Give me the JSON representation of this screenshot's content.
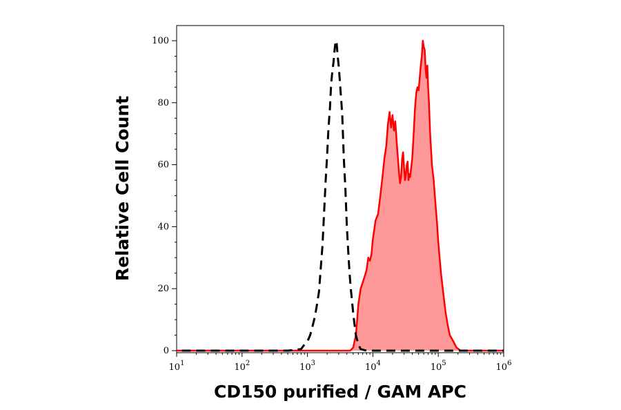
{
  "chart_data": {
    "type": "area",
    "xlabel": "CD150 purified / GAM APC",
    "ylabel": "Relative Cell Count",
    "x_scale": "log",
    "xlim": [
      10,
      1000000
    ],
    "ylim": [
      0,
      105
    ],
    "x_ticks": [
      {
        "base": "10",
        "exp": "1"
      },
      {
        "base": "10",
        "exp": "2"
      },
      {
        "base": "10",
        "exp": "3"
      },
      {
        "base": "10",
        "exp": "4"
      },
      {
        "base": "10",
        "exp": "5"
      },
      {
        "base": "10",
        "exp": "6"
      }
    ],
    "y_ticks": [
      "0",
      "20",
      "40",
      "60",
      "80",
      "100"
    ],
    "grid": false,
    "legend": "none",
    "series": [
      {
        "style": "dashed-line",
        "color": "#000000",
        "points": [
          [
            12,
            0
          ],
          [
            100,
            0
          ],
          [
            500,
            0
          ],
          [
            800,
            0.5
          ],
          [
            900,
            2
          ],
          [
            1000,
            3
          ],
          [
            1100,
            5
          ],
          [
            1200,
            8
          ],
          [
            1300,
            11
          ],
          [
            1400,
            15
          ],
          [
            1500,
            19
          ],
          [
            1600,
            27
          ],
          [
            1700,
            34
          ],
          [
            1800,
            45
          ],
          [
            1900,
            55
          ],
          [
            2000,
            63
          ],
          [
            2100,
            72
          ],
          [
            2200,
            78
          ],
          [
            2300,
            86
          ],
          [
            2400,
            90
          ],
          [
            2500,
            93
          ],
          [
            2600,
            97
          ],
          [
            2700,
            100
          ],
          [
            2800,
            99
          ],
          [
            2900,
            95
          ],
          [
            3000,
            92
          ],
          [
            3100,
            88
          ],
          [
            3200,
            84
          ],
          [
            3300,
            80
          ],
          [
            3400,
            76
          ],
          [
            3600,
            62
          ],
          [
            3800,
            52
          ],
          [
            4000,
            40
          ],
          [
            4200,
            32
          ],
          [
            4400,
            25
          ],
          [
            4600,
            20
          ],
          [
            4800,
            16
          ],
          [
            5000,
            12
          ],
          [
            5200,
            9
          ],
          [
            5500,
            5
          ],
          [
            6000,
            2
          ],
          [
            6500,
            0.5
          ],
          [
            8000,
            0
          ],
          [
            30000,
            0
          ],
          [
            70000,
            0
          ],
          [
            100000,
            0
          ],
          [
            1000000,
            0
          ]
        ]
      },
      {
        "style": "filled-area",
        "color": "#ff0000",
        "fill": "#ff9999",
        "points": [
          [
            10,
            0
          ],
          [
            4500,
            0
          ],
          [
            5000,
            1
          ],
          [
            5500,
            5
          ],
          [
            6000,
            15
          ],
          [
            6500,
            20
          ],
          [
            7000,
            22
          ],
          [
            7500,
            24
          ],
          [
            8000,
            26
          ],
          [
            8500,
            30
          ],
          [
            9000,
            29
          ],
          [
            9500,
            31
          ],
          [
            10000,
            36
          ],
          [
            11000,
            42
          ],
          [
            12000,
            44
          ],
          [
            13000,
            50
          ],
          [
            14000,
            56
          ],
          [
            15000,
            62
          ],
          [
            16000,
            66
          ],
          [
            17000,
            73
          ],
          [
            18000,
            77
          ],
          [
            19000,
            72
          ],
          [
            20000,
            76
          ],
          [
            21000,
            71
          ],
          [
            22000,
            74
          ],
          [
            23000,
            68
          ],
          [
            24000,
            63
          ],
          [
            25000,
            58
          ],
          [
            26000,
            54
          ],
          [
            27000,
            56
          ],
          [
            28000,
            62
          ],
          [
            29000,
            64
          ],
          [
            30000,
            59
          ],
          [
            31000,
            55
          ],
          [
            32000,
            57
          ],
          [
            33000,
            60
          ],
          [
            34000,
            61
          ],
          [
            35000,
            55
          ],
          [
            36000,
            57
          ],
          [
            37000,
            56
          ],
          [
            38000,
            58
          ],
          [
            40000,
            62
          ],
          [
            42000,
            70
          ],
          [
            44000,
            78
          ],
          [
            46000,
            83
          ],
          [
            48000,
            85
          ],
          [
            50000,
            84
          ],
          [
            52000,
            88
          ],
          [
            54000,
            92
          ],
          [
            56000,
            95
          ],
          [
            58000,
            100
          ],
          [
            60000,
            98
          ],
          [
            62000,
            97
          ],
          [
            64000,
            91
          ],
          [
            66000,
            88
          ],
          [
            68000,
            92
          ],
          [
            70000,
            85
          ],
          [
            72000,
            80
          ],
          [
            75000,
            70
          ],
          [
            80000,
            60
          ],
          [
            85000,
            55
          ],
          [
            90000,
            48
          ],
          [
            95000,
            42
          ],
          [
            100000,
            35
          ],
          [
            110000,
            25
          ],
          [
            120000,
            18
          ],
          [
            130000,
            12
          ],
          [
            140000,
            8
          ],
          [
            150000,
            5
          ],
          [
            170000,
            3
          ],
          [
            190000,
            1
          ],
          [
            220000,
            0
          ],
          [
            1000000,
            0
          ]
        ]
      }
    ]
  }
}
